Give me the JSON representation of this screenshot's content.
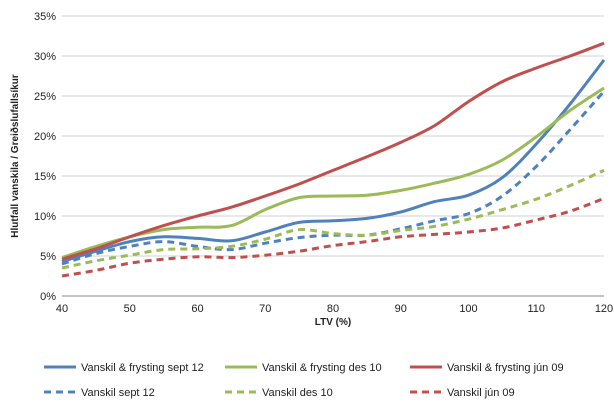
{
  "chart_data": {
    "type": "line",
    "title": "",
    "xlabel": "LTV (%)",
    "ylabel": "Hlutfall vanskila / Greiðslufallsíkur",
    "xlim": [
      40,
      120
    ],
    "ylim": [
      0,
      35
    ],
    "x_ticks": [
      "40",
      "50",
      "60",
      "70",
      "80",
      "90",
      "100",
      "110",
      "120"
    ],
    "y_ticks": [
      "0%",
      "5%",
      "10%",
      "15%",
      "20%",
      "25%",
      "30%",
      "35%"
    ],
    "grid": "horizontal",
    "legend_position": "bottom",
    "x": [
      40,
      45,
      50,
      55,
      60,
      65,
      70,
      75,
      80,
      85,
      90,
      95,
      100,
      105,
      110,
      115,
      120
    ],
    "series": [
      {
        "name": "Vanskil & frysting sept 12",
        "color": "#4F81BD",
        "dash": "solid",
        "values": [
          4.3,
          5.6,
          6.8,
          7.4,
          7.2,
          6.9,
          8.0,
          9.2,
          9.4,
          9.7,
          10.5,
          11.8,
          12.6,
          14.8,
          19.0,
          24.0,
          29.5
        ]
      },
      {
        "name": "Vanskil & frysting des 10",
        "color": "#9BBB59",
        "dash": "solid",
        "values": [
          4.8,
          6.2,
          7.4,
          8.3,
          8.6,
          8.8,
          10.8,
          12.3,
          12.5,
          12.6,
          13.2,
          14.1,
          15.2,
          17.0,
          19.9,
          23.2,
          26.0
        ]
      },
      {
        "name": "Vanskil & frysting jún 09",
        "color": "#C0504D",
        "dash": "solid",
        "values": [
          4.6,
          5.9,
          7.4,
          8.8,
          10.0,
          11.1,
          12.5,
          14.0,
          15.7,
          17.4,
          19.2,
          21.3,
          24.3,
          26.8,
          28.5,
          30.0,
          31.6
        ]
      },
      {
        "name": "Vanskil sept 12",
        "color": "#4F81BD",
        "dash": "dashed",
        "values": [
          4.0,
          5.3,
          6.2,
          6.8,
          6.2,
          5.8,
          6.6,
          7.3,
          7.6,
          7.6,
          8.4,
          9.4,
          10.3,
          12.5,
          16.2,
          20.8,
          25.6
        ]
      },
      {
        "name": "Vanskil des 10",
        "color": "#9BBB59",
        "dash": "dashed",
        "values": [
          3.5,
          4.4,
          5.1,
          5.8,
          5.9,
          6.2,
          7.1,
          8.3,
          7.8,
          7.6,
          8.2,
          8.7,
          9.6,
          10.8,
          12.1,
          13.8,
          15.7
        ]
      },
      {
        "name": "Vanskil jún 09",
        "color": "#C0504D",
        "dash": "dashed",
        "values": [
          2.5,
          3.2,
          4.1,
          4.6,
          4.9,
          4.8,
          5.1,
          5.6,
          6.3,
          6.8,
          7.4,
          7.7,
          8.0,
          8.5,
          9.5,
          10.6,
          12.2
        ]
      }
    ]
  }
}
